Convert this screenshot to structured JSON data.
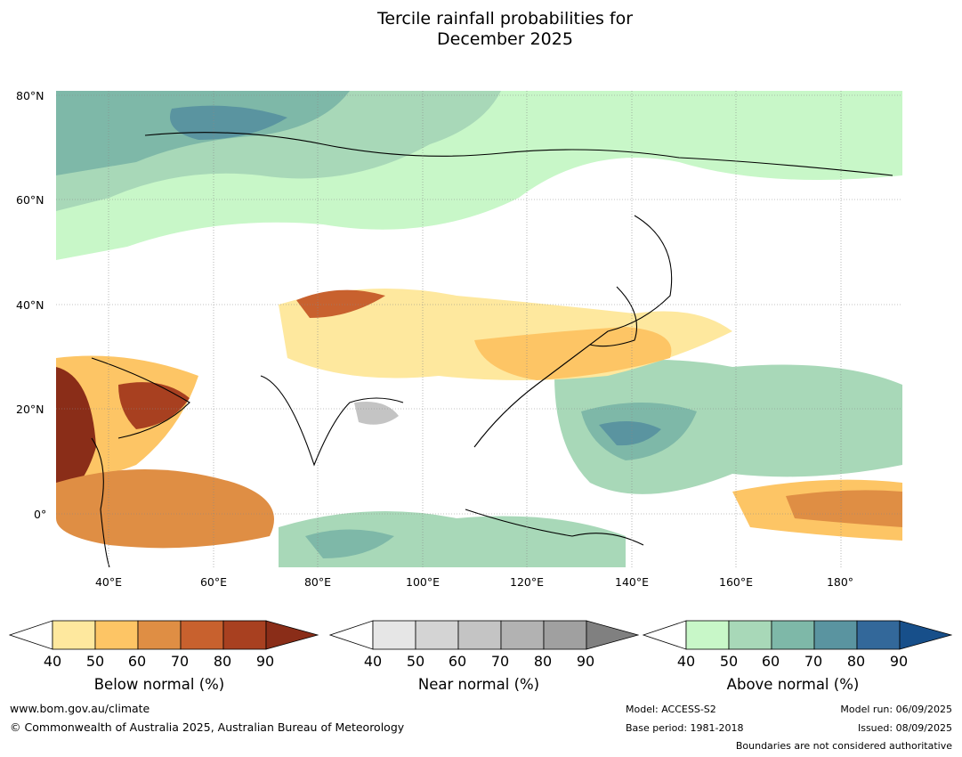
{
  "title_line1": "Tercile rainfall probabilities for",
  "title_line2": "December 2025",
  "lat_labels": [
    "80°N",
    "60°N",
    "40°N",
    "20°N",
    "0°"
  ],
  "lon_labels": [
    "40°E",
    "60°E",
    "80°E",
    "100°E",
    "120°E",
    "140°E",
    "160°E",
    "180°"
  ],
  "colorbars": [
    {
      "name": "Below normal (%)",
      "ticks": [
        "40",
        "50",
        "60",
        "70",
        "80",
        "90"
      ],
      "colors": [
        "#ffffff",
        "#fee89e",
        "#fdc565",
        "#df8e44",
        "#c8612e",
        "#a84020",
        "#8a2d18"
      ]
    },
    {
      "name": "Near normal (%)",
      "ticks": [
        "40",
        "50",
        "60",
        "70",
        "80",
        "90"
      ],
      "colors": [
        "#ffffff",
        "#e6e6e6",
        "#d4d4d4",
        "#c4c4c4",
        "#b2b2b2",
        "#a0a0a0",
        "#808080"
      ]
    },
    {
      "name": "Above normal (%)",
      "ticks": [
        "40",
        "50",
        "60",
        "70",
        "80",
        "90"
      ],
      "colors": [
        "#ffffff",
        "#c8f7c8",
        "#a8d8b8",
        "#7eb8a8",
        "#5a94a0",
        "#33689a",
        "#174f8a"
      ]
    }
  ],
  "footer": {
    "website": "www.bom.gov.au/climate",
    "copyright": "© Commonwealth of Australia 2025, Australian Bureau of Meteorology",
    "model": "Model: ACCESS-S2",
    "base_period": "Base period: 1981-2018",
    "model_run": "Model run: 06/09/2025",
    "issued": "Issued: 08/09/2025",
    "disclaimer": "Boundaries are not considered authoritative"
  }
}
